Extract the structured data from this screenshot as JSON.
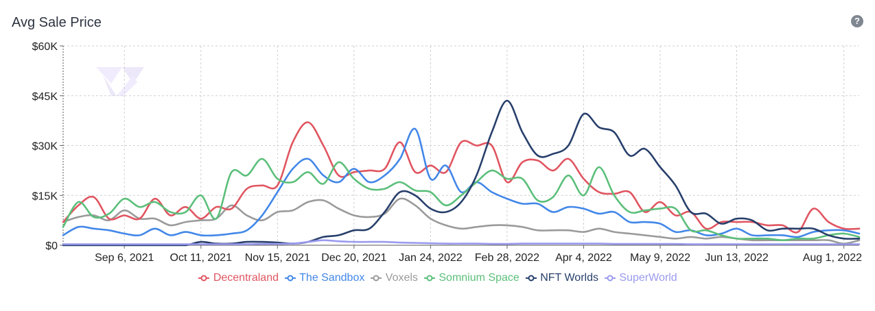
{
  "header": {
    "title": "Avg Sale Price",
    "help_icon": "question-circle-icon",
    "help_glyph": "?"
  },
  "colors": {
    "Decentraland": "#e05560",
    "The Sandbox": "#4287e8",
    "Voxels": "#9a9a9a",
    "Somnium Space": "#5bbf7a",
    "NFT Worlds": "#273f6b",
    "SuperWorld": "#9a9af0"
  },
  "chart_data": {
    "type": "line",
    "title": "Avg Sale Price",
    "x_start": "2021-08-09",
    "x_end": "2022-08-08",
    "x_step_days": 7,
    "ylim": [
      0,
      60000
    ],
    "yticks": [
      {
        "value": 0,
        "label": "$0"
      },
      {
        "value": 15000,
        "label": "$15K"
      },
      {
        "value": 30000,
        "label": "$30K"
      },
      {
        "value": 45000,
        "label": "$45K"
      },
      {
        "value": 60000,
        "label": "$60K"
      }
    ],
    "xticks": [
      {
        "date": "2021-09-06",
        "label": "Sep 6, 2021"
      },
      {
        "date": "2021-10-11",
        "label": "Oct 11, 2021"
      },
      {
        "date": "2021-11-15",
        "label": "Nov 15, 2021"
      },
      {
        "date": "2021-12-20",
        "label": "Dec 20, 2021"
      },
      {
        "date": "2022-01-24",
        "label": "Jan 24, 2022"
      },
      {
        "date": "2022-02-28",
        "label": "Feb 28, 2022"
      },
      {
        "date": "2022-04-04",
        "label": "Apr 4, 2022"
      },
      {
        "date": "2022-05-09",
        "label": "May 9, 2022"
      },
      {
        "date": "2022-06-13",
        "label": "Jun 13, 2022"
      },
      {
        "date": "2022-08-01",
        "label": "Aug 1, 2022"
      }
    ],
    "grid": true,
    "legend": "bottom",
    "series": [
      {
        "name": "Decentraland",
        "values": [
          7000,
          12000,
          14500,
          8000,
          9000,
          8000,
          14000,
          9000,
          11500,
          8000,
          11500,
          11000,
          17000,
          18000,
          18000,
          31000,
          37000,
          30000,
          21000,
          22000,
          22500,
          23000,
          31000,
          22000,
          24000,
          22000,
          31000,
          30000,
          30000,
          19000,
          25000,
          25500,
          22500,
          26000,
          20000,
          16000,
          15500,
          16000,
          10000,
          13000,
          9000,
          10000,
          5000,
          7000,
          7000,
          7000,
          6000,
          6000,
          4000,
          11000,
          7000,
          5000,
          5000
        ]
      },
      {
        "name": "The Sandbox",
        "values": [
          3000,
          5500,
          5000,
          4500,
          3500,
          3000,
          5000,
          3000,
          4000,
          3000,
          3000,
          3500,
          4500,
          9000,
          16000,
          23000,
          26000,
          21000,
          19000,
          23000,
          19000,
          21000,
          26000,
          35000,
          20000,
          24000,
          16000,
          19000,
          16000,
          14000,
          12500,
          12500,
          10000,
          11500,
          11000,
          9500,
          10000,
          7000,
          7000,
          6500,
          4000,
          4500,
          3000,
          3500,
          5000,
          3000,
          3000,
          3000,
          2500,
          4000,
          4500,
          4500,
          3500
        ]
      },
      {
        "name": "Voxels",
        "values": [
          7000,
          8500,
          9000,
          7500,
          10500,
          8000,
          8000,
          6000,
          7000,
          7500,
          8000,
          12000,
          9000,
          7500,
          10000,
          10500,
          13000,
          13500,
          11000,
          9000,
          8500,
          9500,
          14000,
          12000,
          8000,
          6000,
          5000,
          5500,
          6000,
          6000,
          5500,
          4500,
          4500,
          4500,
          4000,
          5000,
          4000,
          3500,
          3000,
          2500,
          2000,
          2500,
          2000,
          2500,
          2000,
          1500,
          1500,
          1500,
          1500,
          1500,
          1500,
          500,
          1500
        ]
      },
      {
        "name": "Somnium Space",
        "values": [
          5500,
          13000,
          8500,
          9500,
          14000,
          11500,
          13000,
          10000,
          10000,
          15000,
          8000,
          22000,
          21000,
          26000,
          20000,
          19000,
          22000,
          18500,
          25000,
          20000,
          17000,
          17000,
          19000,
          16500,
          16000,
          12000,
          15000,
          19000,
          22500,
          20000,
          20000,
          13500,
          14500,
          21000,
          15000,
          23500,
          15000,
          10000,
          10500,
          11000,
          11000,
          4500,
          4500,
          3000,
          2000,
          2000,
          2000,
          1500,
          2000,
          2000,
          3000,
          3500,
          2500
        ]
      },
      {
        "name": "NFT Worlds",
        "values": [
          0,
          0,
          0,
          0,
          0,
          0,
          0,
          0,
          0,
          1000,
          500,
          500,
          1000,
          1000,
          800,
          500,
          1000,
          2500,
          3000,
          4500,
          5000,
          10000,
          16000,
          15000,
          11000,
          10000,
          13000,
          21000,
          34000,
          43500,
          34000,
          27000,
          27500,
          30000,
          39500,
          35500,
          34000,
          27000,
          29000,
          23500,
          18000,
          10000,
          9500,
          6500,
          8000,
          7500,
          4500,
          5000,
          5000,
          5000,
          3000,
          2000,
          2000
        ]
      },
      {
        "name": "SuperWorld",
        "values": [
          300,
          300,
          300,
          300,
          300,
          300,
          300,
          300,
          300,
          300,
          300,
          300,
          300,
          400,
          400,
          500,
          1000,
          1500,
          1200,
          1000,
          1000,
          1000,
          800,
          700,
          600,
          500,
          500,
          500,
          400,
          400,
          500,
          500,
          500,
          500,
          500,
          500,
          400,
          400,
          400,
          400,
          400,
          300,
          300,
          300,
          300,
          300,
          300,
          300,
          300,
          300,
          300,
          300,
          300
        ]
      }
    ]
  }
}
